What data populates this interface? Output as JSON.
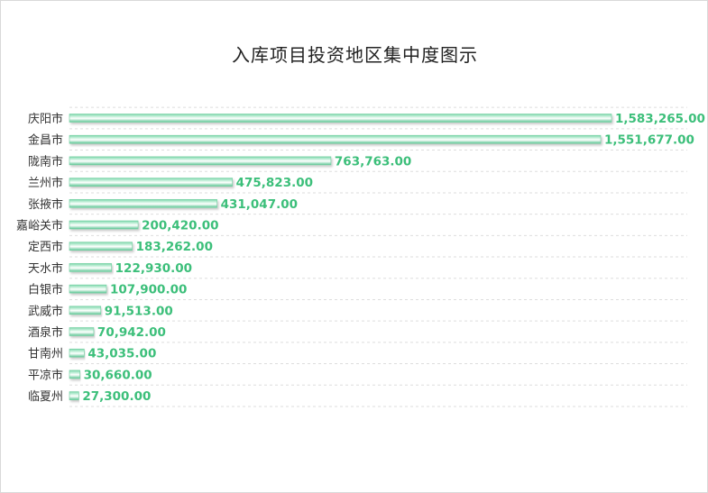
{
  "chart_data": {
    "type": "bar",
    "orientation": "horizontal",
    "title": "入库项目投资地区集中度图示",
    "categories": [
      "庆阳市",
      "金昌市",
      "陇南市",
      "兰州市",
      "张掖市",
      "嘉峪关市",
      "定西市",
      "天水市",
      "白银市",
      "武威市",
      "酒泉市",
      "甘南州",
      "平凉市",
      "临夏州"
    ],
    "values": [
      1583265.0,
      1551677.0,
      763763.0,
      475823.0,
      431047.0,
      200420.0,
      183262.0,
      122930.0,
      107900.0,
      91513.0,
      70942.0,
      43035.0,
      30660.0,
      27300.0
    ],
    "value_labels": [
      "1,583,265.00",
      "1,551,677.00",
      "763,763.00",
      "475,823.00",
      "431,047.00",
      "200,420.00",
      "183,262.00",
      "122,930.00",
      "107,900.00",
      "91,513.00",
      "70,942.00",
      "43,035.00",
      "30,660.00",
      "27,300.00"
    ],
    "xlabel": "",
    "ylabel": "",
    "xlim": [
      0,
      1583265
    ],
    "grid": true,
    "legend": "none",
    "colors": {
      "bar": "#a8e6cf",
      "bar_edge": "#6fcf9f",
      "label": "#3cbf7a",
      "grid": "#dddddd",
      "category": "#333333"
    }
  }
}
